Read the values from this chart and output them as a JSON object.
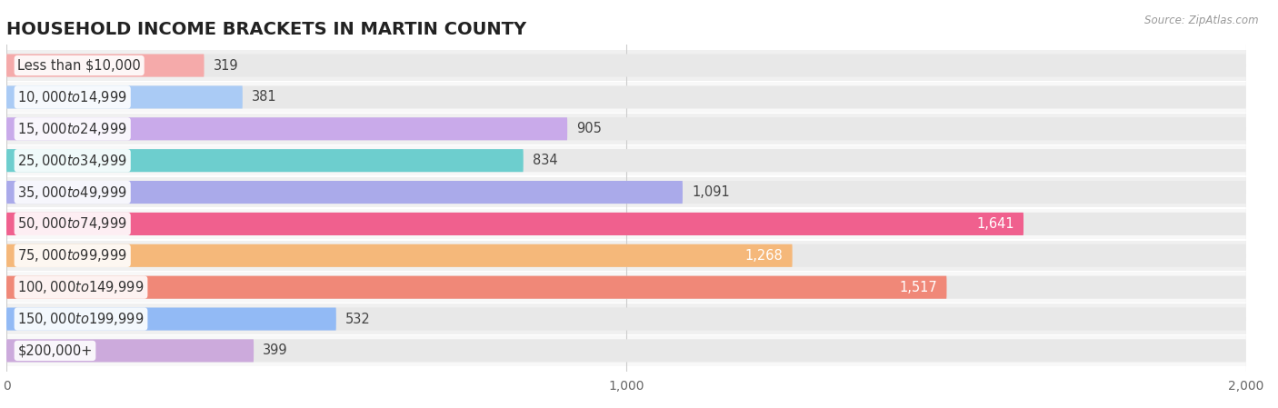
{
  "title": "HOUSEHOLD INCOME BRACKETS IN MARTIN COUNTY",
  "source": "Source: ZipAtlas.com",
  "categories": [
    "Less than $10,000",
    "$10,000 to $14,999",
    "$15,000 to $24,999",
    "$25,000 to $34,999",
    "$35,000 to $49,999",
    "$50,000 to $74,999",
    "$75,000 to $99,999",
    "$100,000 to $149,999",
    "$150,000 to $199,999",
    "$200,000+"
  ],
  "values": [
    319,
    381,
    905,
    834,
    1091,
    1641,
    1268,
    1517,
    532,
    399
  ],
  "bar_colors": [
    "#f5aaaa",
    "#aacbf5",
    "#c9aaea",
    "#6dcece",
    "#aaaaea",
    "#f0608e",
    "#f5b87a",
    "#f08878",
    "#92baf5",
    "#ccaadc"
  ],
  "value_label_inside": [
    false,
    false,
    false,
    false,
    false,
    true,
    true,
    true,
    false,
    false
  ],
  "xlim": [
    0,
    2000
  ],
  "xticks": [
    0,
    1000,
    2000
  ],
  "bar_bg_color": "#e8e8e8",
  "title_fontsize": 14,
  "label_fontsize": 10.5,
  "value_fontsize": 10.5
}
